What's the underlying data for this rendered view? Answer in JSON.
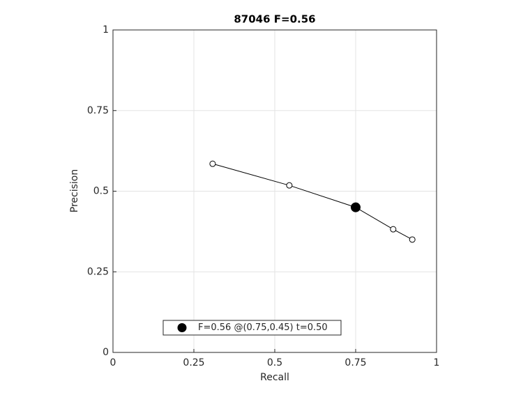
{
  "chart_data": {
    "type": "line",
    "title": "87046 F=0.56",
    "x_label": "Recall",
    "y_label": "Precision",
    "xlim": [
      0,
      1
    ],
    "ylim": [
      0,
      1
    ],
    "xticks": [
      0,
      0.25,
      0.5,
      0.75,
      1
    ],
    "yticks": [
      0,
      0.25,
      0.5,
      0.75,
      1
    ],
    "grid": true,
    "legend": "lower left",
    "series": [
      {
        "color": "#000000",
        "marker": "open",
        "x": [
          0.308,
          0.545,
          0.75,
          0.866,
          0.925
        ],
        "values": [
          0.585,
          0.518,
          0.45,
          0.382,
          0.35
        ]
      },
      {
        "name": "F=0.56 @(0.75,0.45) t=0.50",
        "color": "#000000",
        "marker": "filled",
        "x": [
          0.75
        ],
        "values": [
          0.45
        ]
      }
    ]
  }
}
